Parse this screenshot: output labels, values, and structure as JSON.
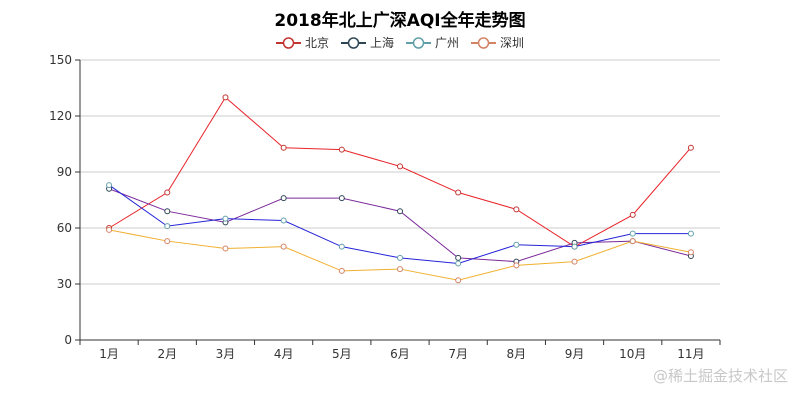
{
  "chart_data": {
    "type": "line",
    "title": "2018年北上广深AQI全年走势图",
    "categories": [
      "1月",
      "2月",
      "3月",
      "4月",
      "5月",
      "6月",
      "7月",
      "8月",
      "9月",
      "10月",
      "11月"
    ],
    "ylim": [
      0,
      150
    ],
    "yticks": [
      0,
      30,
      60,
      90,
      120,
      150
    ],
    "grid": true,
    "legend_position": "top",
    "series": [
      {
        "name": "北京",
        "values": [
          60,
          79,
          130,
          103,
          102,
          93,
          79,
          70,
          50,
          67,
          103
        ],
        "color": "#e8242a",
        "legend_color": "#c23531"
      },
      {
        "name": "上海",
        "values": [
          81,
          69,
          63,
          76,
          76,
          69,
          44,
          42,
          52,
          53,
          45
        ],
        "color": "#7b2a9a",
        "legend_color": "#2f4554"
      },
      {
        "name": "广州",
        "values": [
          83,
          61,
          65,
          64,
          50,
          44,
          41,
          51,
          50,
          57,
          57
        ],
        "color": "#2424d8",
        "legend_color": "#61a0a8"
      },
      {
        "name": "深圳",
        "values": [
          59,
          53,
          49,
          50,
          37,
          38,
          32,
          40,
          42,
          53,
          47
        ],
        "color": "#f0b030",
        "legend_color": "#d48265"
      }
    ]
  },
  "watermark": "@稀土掘金技术社区"
}
